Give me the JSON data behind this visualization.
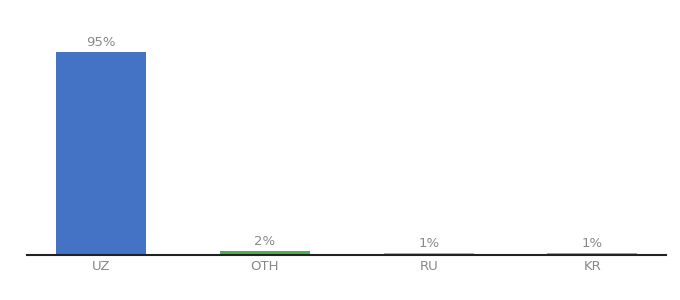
{
  "categories": [
    "UZ",
    "OTH",
    "RU",
    "KR"
  ],
  "values": [
    95,
    2,
    1,
    1
  ],
  "labels": [
    "95%",
    "2%",
    "1%",
    "1%"
  ],
  "bar_colors": [
    "#4472C4",
    "#4CAF50",
    "#FFA726",
    "#64B5F6"
  ],
  "background_color": "#ffffff",
  "ylim": [
    0,
    108
  ],
  "bar_width": 0.55,
  "label_fontsize": 9.5,
  "tick_fontsize": 9.5,
  "label_color": "#888888",
  "tick_color": "#888888",
  "spine_color": "#222222"
}
